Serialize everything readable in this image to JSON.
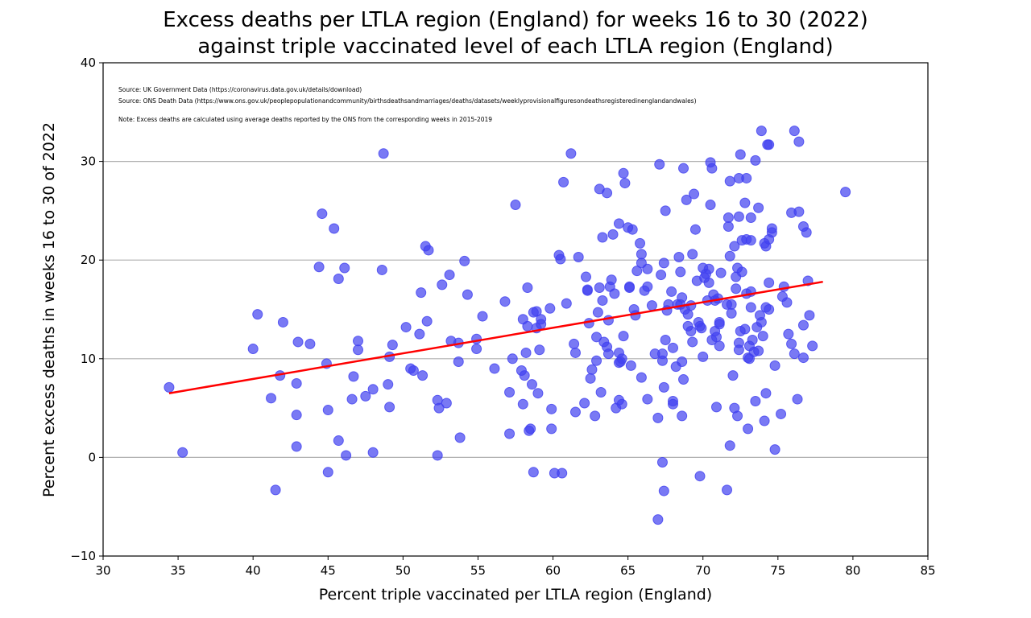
{
  "chart_data": {
    "type": "scatter",
    "title_lines": [
      "Excess deaths per LTLA region (England) for weeks 16 to 30 (2022)",
      "against triple vaccinated level of each LTLA region (England)"
    ],
    "xlabel": "Percent triple vaccinated per LTLA region (England)",
    "ylabel": "Percent excess deaths in weeks 16 to 30 of 2022",
    "xlim": [
      30,
      85
    ],
    "ylim": [
      -10,
      40
    ],
    "xticks": [
      30,
      35,
      40,
      45,
      50,
      55,
      60,
      65,
      70,
      75,
      80,
      85
    ],
    "yticks": [
      -10,
      0,
      10,
      20,
      30,
      40
    ],
    "grid": "y-major",
    "annotations": [
      "Source: UK Government Data (https://coronavirus.data.gov.uk/details/download)",
      "Source: ONS Death Data (https://www.ons.gov.uk/peoplepopulationandcommunity/birthsdeathsandmarriages/deaths/datasets/weeklyprovisionalfiguresondeathsregisteredinenglandandwales)",
      "Note: Excess deaths are calculated using average deaths reported by the ONS from the corresponding weeks in 2015-2019"
    ],
    "colors": {
      "points": "#4040f0",
      "trendline": "#ff0000",
      "grid": "#b0b0b0"
    },
    "trendline": {
      "x": [
        34.4,
        78.0
      ],
      "y": [
        6.5,
        17.8
      ]
    },
    "points": [
      [
        34.4,
        7.1
      ],
      [
        35.3,
        0.5
      ],
      [
        40.0,
        11.0
      ],
      [
        40.3,
        14.5
      ],
      [
        41.5,
        -3.3
      ],
      [
        41.2,
        6.0
      ],
      [
        41.8,
        8.3
      ],
      [
        42.0,
        13.7
      ],
      [
        42.9,
        4.3
      ],
      [
        42.9,
        7.5
      ],
      [
        42.9,
        1.1
      ],
      [
        43.0,
        11.7
      ],
      [
        43.8,
        11.5
      ],
      [
        44.4,
        19.3
      ],
      [
        44.6,
        24.7
      ],
      [
        44.9,
        9.5
      ],
      [
        45.0,
        4.8
      ],
      [
        45.0,
        -1.5
      ],
      [
        45.4,
        23.2
      ],
      [
        45.7,
        18.1
      ],
      [
        45.7,
        1.7
      ],
      [
        46.1,
        19.2
      ],
      [
        46.2,
        0.2
      ],
      [
        46.6,
        5.9
      ],
      [
        46.7,
        8.2
      ],
      [
        47.0,
        11.8
      ],
      [
        47.0,
        10.9
      ],
      [
        47.5,
        6.2
      ],
      [
        48.0,
        6.9
      ],
      [
        48.0,
        0.5
      ],
      [
        48.7,
        30.8
      ],
      [
        48.6,
        19.0
      ],
      [
        49.0,
        7.4
      ],
      [
        49.1,
        5.1
      ],
      [
        49.1,
        10.2
      ],
      [
        49.3,
        11.4
      ],
      [
        50.2,
        13.2
      ],
      [
        50.5,
        9.0
      ],
      [
        50.7,
        8.8
      ],
      [
        51.1,
        12.5
      ],
      [
        51.2,
        16.7
      ],
      [
        51.3,
        8.3
      ],
      [
        51.5,
        21.4
      ],
      [
        51.7,
        21.0
      ],
      [
        51.6,
        13.8
      ],
      [
        52.3,
        5.8
      ],
      [
        52.3,
        0.2
      ],
      [
        52.4,
        5.0
      ],
      [
        52.6,
        17.5
      ],
      [
        52.9,
        5.5
      ],
      [
        53.1,
        18.5
      ],
      [
        53.2,
        11.8
      ],
      [
        53.7,
        9.7
      ],
      [
        53.7,
        11.6
      ],
      [
        53.8,
        2.0
      ],
      [
        54.1,
        19.9
      ],
      [
        54.3,
        16.5
      ],
      [
        54.9,
        11.0
      ],
      [
        54.9,
        12.0
      ],
      [
        55.3,
        14.3
      ],
      [
        56.1,
        9.0
      ],
      [
        56.8,
        15.8
      ],
      [
        57.1,
        6.6
      ],
      [
        57.1,
        2.4
      ],
      [
        57.3,
        10.0
      ],
      [
        57.5,
        25.6
      ],
      [
        57.9,
        8.8
      ],
      [
        58.0,
        14.0
      ],
      [
        58.0,
        5.4
      ],
      [
        58.1,
        8.3
      ],
      [
        58.2,
        10.6
      ],
      [
        58.3,
        17.2
      ],
      [
        58.3,
        13.3
      ],
      [
        58.4,
        2.7
      ],
      [
        58.5,
        2.9
      ],
      [
        58.6,
        7.4
      ],
      [
        58.7,
        -1.5
      ],
      [
        58.7,
        14.7
      ],
      [
        58.9,
        14.8
      ],
      [
        58.9,
        13.1
      ],
      [
        59.0,
        6.5
      ],
      [
        59.1,
        10.9
      ],
      [
        59.2,
        14.0
      ],
      [
        59.2,
        13.5
      ],
      [
        59.8,
        15.1
      ],
      [
        59.9,
        2.9
      ],
      [
        59.9,
        4.9
      ],
      [
        60.1,
        -1.6
      ],
      [
        60.4,
        20.5
      ],
      [
        60.5,
        20.1
      ],
      [
        60.6,
        -1.6
      ],
      [
        60.7,
        27.9
      ],
      [
        60.9,
        15.6
      ],
      [
        61.2,
        30.8
      ],
      [
        61.4,
        11.5
      ],
      [
        61.5,
        10.6
      ],
      [
        61.5,
        4.6
      ],
      [
        61.7,
        20.3
      ],
      [
        62.1,
        5.5
      ],
      [
        62.2,
        18.3
      ],
      [
        62.3,
        17.0
      ],
      [
        62.3,
        16.9
      ],
      [
        62.4,
        13.6
      ],
      [
        62.5,
        8.0
      ],
      [
        62.6,
        8.9
      ],
      [
        62.8,
        4.2
      ],
      [
        62.9,
        12.2
      ],
      [
        62.9,
        9.8
      ],
      [
        63.0,
        14.7
      ],
      [
        63.1,
        27.2
      ],
      [
        63.1,
        17.2
      ],
      [
        63.2,
        6.6
      ],
      [
        63.3,
        22.3
      ],
      [
        63.3,
        15.9
      ],
      [
        63.4,
        11.7
      ],
      [
        63.6,
        26.8
      ],
      [
        63.6,
        11.2
      ],
      [
        63.7,
        10.5
      ],
      [
        63.7,
        13.9
      ],
      [
        63.8,
        17.3
      ],
      [
        63.9,
        18.0
      ],
      [
        64.0,
        22.6
      ],
      [
        64.1,
        16.6
      ],
      [
        64.2,
        5.0
      ],
      [
        64.4,
        10.6
      ],
      [
        64.4,
        9.6
      ],
      [
        64.4,
        23.7
      ],
      [
        64.4,
        5.8
      ],
      [
        64.5,
        9.7
      ],
      [
        64.6,
        5.4
      ],
      [
        64.6,
        10.0
      ],
      [
        64.7,
        12.3
      ],
      [
        64.7,
        28.8
      ],
      [
        64.8,
        27.8
      ],
      [
        65.0,
        23.3
      ],
      [
        65.1,
        17.2
      ],
      [
        65.1,
        17.3
      ],
      [
        65.2,
        9.3
      ],
      [
        65.3,
        23.1
      ],
      [
        65.4,
        15.0
      ],
      [
        65.5,
        14.4
      ],
      [
        65.6,
        18.9
      ],
      [
        65.8,
        21.7
      ],
      [
        65.9,
        19.7
      ],
      [
        65.9,
        20.6
      ],
      [
        65.9,
        8.1
      ],
      [
        66.1,
        16.9
      ],
      [
        66.3,
        19.1
      ],
      [
        66.3,
        5.9
      ],
      [
        66.3,
        17.3
      ],
      [
        66.6,
        15.4
      ],
      [
        66.8,
        10.5
      ],
      [
        67.0,
        4.0
      ],
      [
        67.0,
        -6.3
      ],
      [
        67.1,
        29.7
      ],
      [
        67.2,
        18.5
      ],
      [
        67.3,
        10.5
      ],
      [
        67.3,
        -0.5
      ],
      [
        67.3,
        9.8
      ],
      [
        67.4,
        -3.4
      ],
      [
        67.4,
        7.1
      ],
      [
        67.4,
        19.7
      ],
      [
        67.5,
        25.0
      ],
      [
        67.5,
        11.9
      ],
      [
        67.6,
        14.9
      ],
      [
        67.7,
        15.5
      ],
      [
        67.9,
        16.8
      ],
      [
        68.0,
        5.7
      ],
      [
        68.0,
        5.4
      ],
      [
        68.0,
        11.1
      ],
      [
        68.2,
        9.2
      ],
      [
        68.3,
        15.5
      ],
      [
        68.4,
        20.3
      ],
      [
        68.5,
        18.8
      ],
      [
        68.5,
        15.5
      ],
      [
        68.6,
        16.2
      ],
      [
        68.6,
        9.7
      ],
      [
        68.6,
        4.2
      ],
      [
        68.7,
        29.3
      ],
      [
        68.7,
        7.9
      ],
      [
        68.8,
        15.0
      ],
      [
        68.9,
        26.1
      ],
      [
        69.0,
        14.5
      ],
      [
        69.0,
        13.3
      ],
      [
        69.2,
        12.8
      ],
      [
        69.2,
        15.4
      ],
      [
        69.3,
        11.7
      ],
      [
        69.3,
        20.6
      ],
      [
        69.4,
        26.7
      ],
      [
        69.5,
        23.1
      ],
      [
        69.6,
        17.9
      ],
      [
        69.7,
        13.7
      ],
      [
        69.8,
        13.3
      ],
      [
        69.8,
        -1.9
      ],
      [
        69.9,
        13.1
      ],
      [
        70.0,
        19.2
      ],
      [
        70.0,
        10.2
      ],
      [
        70.1,
        18.2
      ],
      [
        70.2,
        18.6
      ],
      [
        70.3,
        15.9
      ],
      [
        70.4,
        19.1
      ],
      [
        70.4,
        17.7
      ],
      [
        70.5,
        25.6
      ],
      [
        70.5,
        29.9
      ],
      [
        70.6,
        11.9
      ],
      [
        70.6,
        29.3
      ],
      [
        70.7,
        16.5
      ],
      [
        70.8,
        12.8
      ],
      [
        70.8,
        15.9
      ],
      [
        70.9,
        5.1
      ],
      [
        70.9,
        12.2
      ],
      [
        71.0,
        16.1
      ],
      [
        71.1,
        13.7
      ],
      [
        71.1,
        11.3
      ],
      [
        71.1,
        13.5
      ],
      [
        71.2,
        18.7
      ],
      [
        71.6,
        15.5
      ],
      [
        71.6,
        -3.3
      ],
      [
        71.7,
        24.3
      ],
      [
        71.7,
        23.4
      ],
      [
        71.8,
        20.4
      ],
      [
        71.8,
        1.2
      ],
      [
        71.8,
        28.0
      ],
      [
        71.9,
        15.5
      ],
      [
        71.9,
        14.6
      ],
      [
        72.0,
        8.3
      ],
      [
        72.1,
        5.0
      ],
      [
        72.1,
        21.4
      ],
      [
        72.2,
        18.3
      ],
      [
        72.2,
        17.1
      ],
      [
        72.3,
        19.2
      ],
      [
        72.4,
        11.6
      ],
      [
        72.4,
        10.9
      ],
      [
        72.4,
        24.4
      ],
      [
        72.4,
        28.3
      ],
      [
        72.3,
        4.2
      ],
      [
        72.5,
        30.7
      ],
      [
        72.5,
        12.8
      ],
      [
        72.6,
        22.0
      ],
      [
        72.6,
        18.8
      ],
      [
        72.8,
        13.0
      ],
      [
        72.8,
        25.8
      ],
      [
        72.9,
        28.3
      ],
      [
        72.9,
        16.6
      ],
      [
        72.9,
        22.1
      ],
      [
        73.0,
        2.9
      ],
      [
        73.1,
        10.0
      ],
      [
        73.0,
        10.1
      ],
      [
        73.1,
        11.3
      ],
      [
        73.2,
        24.3
      ],
      [
        73.2,
        16.8
      ],
      [
        73.2,
        22.0
      ],
      [
        73.2,
        15.2
      ],
      [
        73.3,
        11.9
      ],
      [
        73.4,
        10.7
      ],
      [
        73.5,
        30.1
      ],
      [
        73.5,
        5.7
      ],
      [
        73.6,
        13.2
      ],
      [
        73.7,
        10.8
      ],
      [
        73.7,
        25.3
      ],
      [
        73.8,
        14.4
      ],
      [
        73.9,
        33.1
      ],
      [
        73.9,
        13.7
      ],
      [
        74.0,
        12.3
      ],
      [
        74.1,
        3.7
      ],
      [
        74.1,
        21.7
      ],
      [
        74.2,
        6.5
      ],
      [
        74.2,
        15.2
      ],
      [
        74.2,
        21.4
      ],
      [
        74.3,
        31.7
      ],
      [
        74.4,
        22.1
      ],
      [
        74.4,
        31.7
      ],
      [
        74.4,
        17.7
      ],
      [
        74.4,
        15.0
      ],
      [
        74.6,
        22.8
      ],
      [
        74.6,
        23.2
      ],
      [
        74.8,
        9.3
      ],
      [
        74.8,
        0.8
      ],
      [
        75.2,
        4.4
      ],
      [
        75.3,
        16.3
      ],
      [
        75.4,
        17.3
      ],
      [
        75.6,
        15.7
      ],
      [
        75.7,
        12.5
      ],
      [
        75.9,
        24.8
      ],
      [
        75.9,
        11.5
      ],
      [
        76.1,
        33.1
      ],
      [
        76.1,
        10.5
      ],
      [
        76.3,
        5.9
      ],
      [
        76.4,
        32.0
      ],
      [
        76.4,
        24.9
      ],
      [
        76.7,
        13.4
      ],
      [
        76.7,
        10.1
      ],
      [
        76.7,
        23.4
      ],
      [
        76.9,
        22.8
      ],
      [
        77.0,
        17.9
      ],
      [
        77.1,
        14.4
      ],
      [
        77.3,
        11.3
      ],
      [
        79.5,
        26.9
      ]
    ]
  }
}
